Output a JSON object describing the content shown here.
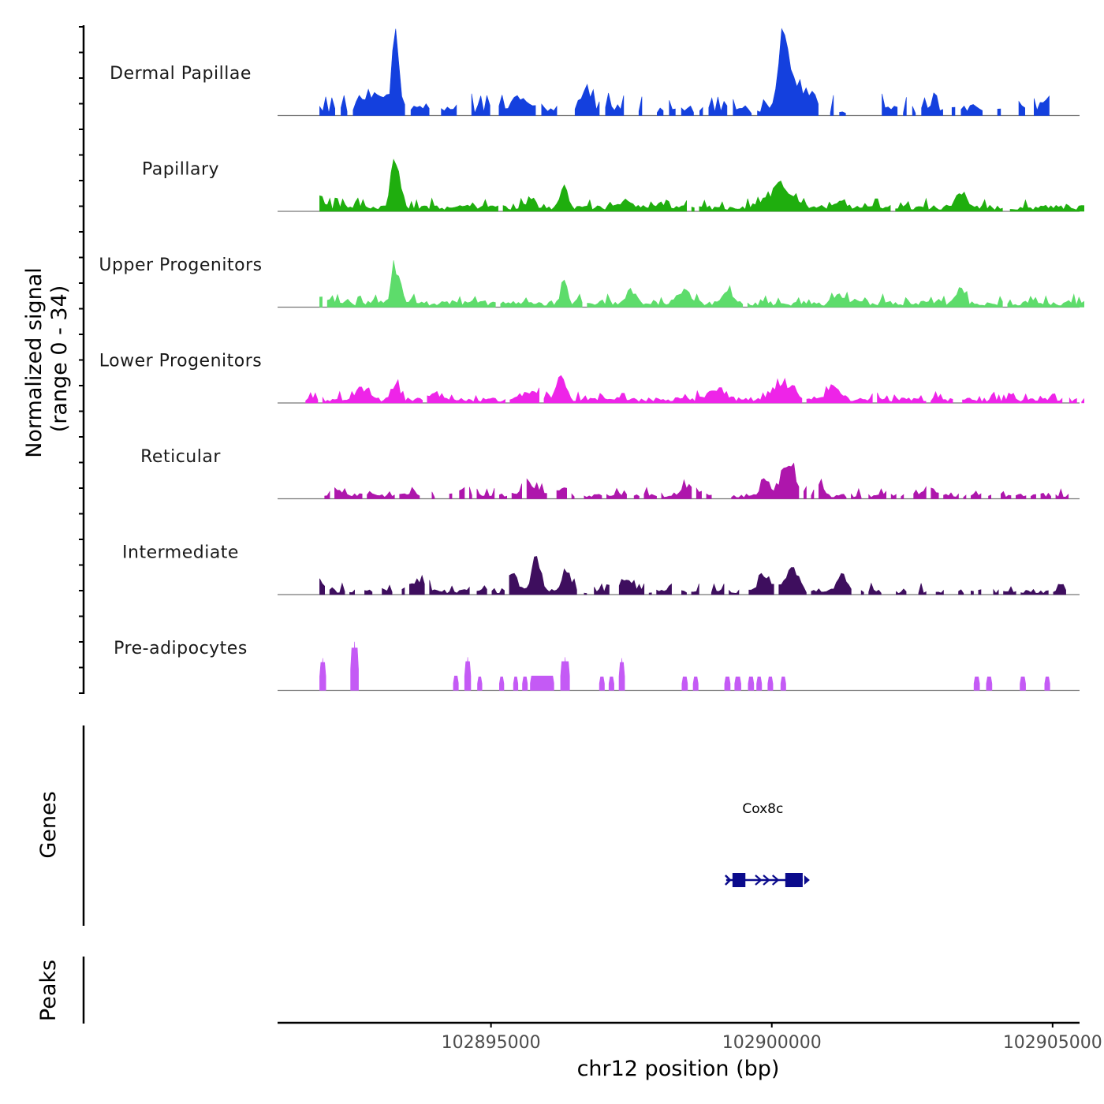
{
  "chart_data": {
    "type": "area",
    "title": "",
    "ylabel_line1": "Normalized signal",
    "ylabel_line2": "(range 0 - 34)",
    "y_range": [
      0,
      34
    ],
    "xlabel": "chr12 position (bp)",
    "chromosome": "chr12",
    "xlim": [
      102891200,
      102905480
    ],
    "x_ticks": [
      102895000,
      102900000,
      102905000
    ],
    "x_tick_labels": [
      "102895000",
      "102900000",
      "102905000"
    ],
    "tracks": [
      {
        "name": "Dermal Papillae",
        "color": "#1440DE",
        "start": 102891950,
        "end": 102904940,
        "bins": 240,
        "noise": 0.12,
        "gap": 0.42,
        "seed": 11,
        "peaks": [
          [
            102893300,
            30,
            60
          ],
          [
            102900200,
            28,
            90
          ],
          [
            102900400,
            10,
            120
          ],
          [
            102896700,
            9,
            60
          ],
          [
            102892900,
            7,
            150
          ],
          [
            102895500,
            5,
            120
          ],
          [
            102900700,
            6,
            100
          ],
          [
            102904900,
            4,
            100
          ]
        ]
      },
      {
        "name": "Papillary",
        "color": "#1FAE0E",
        "start": 102891950,
        "end": 102905560,
        "bins": 300,
        "noise": 0.07,
        "gap": 0.02,
        "seed": 23,
        "peaks": [
          [
            102893300,
            19,
            80
          ],
          [
            102896300,
            10,
            60
          ],
          [
            102900150,
            9,
            200
          ],
          [
            102891950,
            5,
            50
          ],
          [
            102903350,
            5,
            100
          ],
          [
            102901250,
            4,
            60
          ],
          [
            102895700,
            4,
            80
          ],
          [
            102897400,
            3,
            100
          ]
        ]
      },
      {
        "name": "Upper Progenitors",
        "color": "#5DDC6B",
        "start": 102891950,
        "end": 102905560,
        "bins": 300,
        "noise": 0.07,
        "gap": 0.03,
        "seed": 37,
        "peaks": [
          [
            102893300,
            15,
            70
          ],
          [
            102896300,
            8,
            60
          ],
          [
            102903350,
            6,
            70
          ],
          [
            102891980,
            4,
            60
          ],
          [
            102897500,
            5,
            90
          ],
          [
            102898400,
            5,
            100
          ],
          [
            102899200,
            5,
            100
          ],
          [
            102901200,
            4,
            80
          ]
        ]
      },
      {
        "name": "Lower Progenitors",
        "color": "#EE24E8",
        "start": 102891700,
        "end": 102905560,
        "bins": 320,
        "noise": 0.06,
        "gap": 0.06,
        "seed": 41,
        "peaks": [
          [
            102896250,
            9,
            80
          ],
          [
            102900200,
            7,
            150
          ],
          [
            102893300,
            7,
            60
          ],
          [
            102901100,
            6,
            100
          ],
          [
            102892700,
            4,
            100
          ],
          [
            102899000,
            4,
            150
          ],
          [
            102895700,
            4,
            120
          ],
          [
            102894000,
            3,
            100
          ]
        ]
      },
      {
        "name": "Reticular",
        "color": "#AE16AC",
        "start": 102891950,
        "end": 102905280,
        "bins": 300,
        "noise": 0.06,
        "gap": 0.2,
        "seed": 53,
        "peaks": [
          [
            102900300,
            12,
            120
          ],
          [
            102899900,
            6,
            80
          ],
          [
            102900850,
            5,
            60
          ],
          [
            102898500,
            4,
            120
          ],
          [
            102894500,
            3,
            100
          ],
          [
            102895700,
            4,
            150
          ],
          [
            102896300,
            3,
            80
          ],
          [
            102902800,
            3,
            120
          ],
          [
            102892200,
            3,
            80
          ]
        ]
      },
      {
        "name": "Intermediate",
        "color": "#3E0E5E",
        "start": 102891950,
        "end": 102905280,
        "bins": 300,
        "noise": 0.06,
        "gap": 0.2,
        "seed": 67,
        "peaks": [
          [
            102895800,
            14,
            80
          ],
          [
            102896350,
            9,
            80
          ],
          [
            102895400,
            7,
            80
          ],
          [
            102900350,
            9,
            100
          ],
          [
            102899900,
            5,
            150
          ],
          [
            102901250,
            7,
            80
          ],
          [
            102893700,
            4,
            150
          ],
          [
            102891950,
            6,
            60
          ],
          [
            102897400,
            4,
            120
          ]
        ]
      },
      {
        "name": "Pre-adipocytes",
        "color": "#C45AF5",
        "start": 102891950,
        "end": 102905000,
        "bins": 200,
        "noise": 0.0,
        "gap": 0.0,
        "seed": 71,
        "blocks": true,
        "blockList": [
          [
            102891950,
            102892060,
            0.62
          ],
          [
            102892500,
            102892640,
            0.94
          ],
          [
            102894330,
            102894420,
            0.32
          ],
          [
            102894530,
            102894640,
            0.64
          ],
          [
            102894760,
            102894840,
            0.3
          ],
          [
            102895150,
            102895230,
            0.3
          ],
          [
            102895400,
            102895480,
            0.3
          ],
          [
            102895560,
            102895650,
            0.3
          ],
          [
            102895700,
            102896120,
            0.32
          ],
          [
            102896240,
            102896400,
            0.64
          ],
          [
            102896930,
            102897020,
            0.3
          ],
          [
            102897100,
            102897190,
            0.3
          ],
          [
            102897280,
            102897380,
            0.62
          ],
          [
            102898400,
            102898500,
            0.3
          ],
          [
            102898600,
            102898690,
            0.3
          ],
          [
            102899160,
            102899260,
            0.3
          ],
          [
            102899340,
            102899450,
            0.3
          ],
          [
            102899580,
            102899680,
            0.3
          ],
          [
            102899730,
            102899820,
            0.3
          ],
          [
            102899930,
            102900020,
            0.3
          ],
          [
            102900160,
            102900250,
            0.3
          ],
          [
            102903600,
            102903700,
            0.3
          ],
          [
            102903820,
            102903920,
            0.3
          ],
          [
            102904420,
            102904520,
            0.3
          ],
          [
            102904860,
            102904950,
            0.3
          ]
        ]
      }
    ],
    "gene": {
      "name": "Cox8c",
      "start": 102899300,
      "end": 102900550,
      "exons": [
        [
          102899300,
          102899530
        ],
        [
          102900240,
          102900550
        ]
      ],
      "strand": "+",
      "color": "#0B0B8C"
    }
  },
  "side_labels": {
    "genes": "Genes",
    "peaks": "Peaks"
  }
}
